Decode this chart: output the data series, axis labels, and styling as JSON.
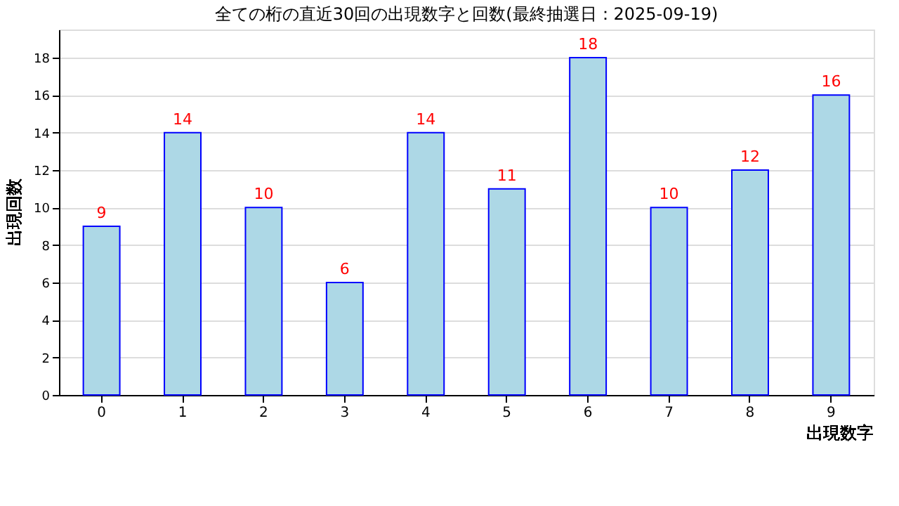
{
  "chart_data": {
    "type": "bar",
    "title": "全ての桁の直近30回の出現数字と回数(最終抽選日：2025-09-19)",
    "xlabel": "出現数字",
    "ylabel": "出現回数",
    "categories": [
      "0",
      "1",
      "2",
      "3",
      "4",
      "5",
      "6",
      "7",
      "8",
      "9"
    ],
    "values": [
      9,
      14,
      10,
      6,
      14,
      11,
      18,
      10,
      12,
      16
    ],
    "color": "#add8e6",
    "ylim": [
      0,
      19.5
    ],
    "yticks": [
      0,
      2,
      4,
      6,
      8,
      10,
      12,
      14,
      16,
      18
    ],
    "grid": "y",
    "data_labels": true
  }
}
